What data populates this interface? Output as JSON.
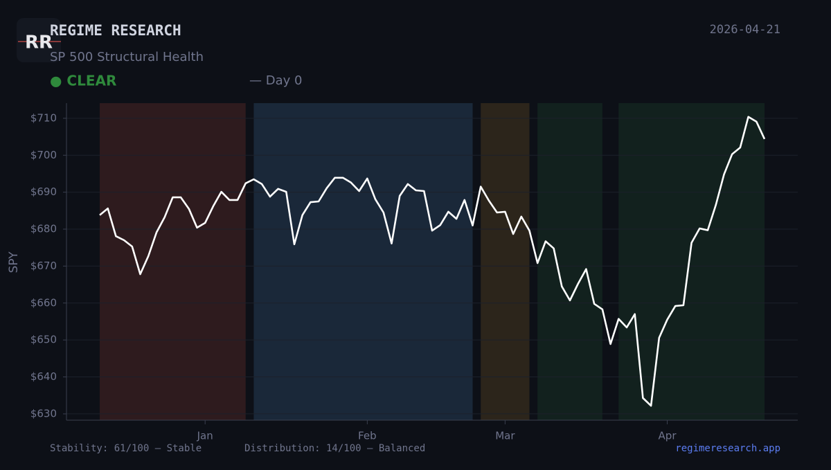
{
  "header": {
    "logo": "RR",
    "title": "REGIME RESEARCH",
    "date": "2026-04-21",
    "subtitle": "SP 500 Structural Health",
    "status": "● CLEAR",
    "day": "— Day 0"
  },
  "chart_data": {
    "type": "line",
    "y_label": "SPY",
    "categories": [
      null,
      null,
      null,
      null,
      null,
      null,
      null,
      null,
      null,
      null,
      null,
      null,
      null,
      "Jan",
      null,
      null,
      null,
      null,
      null,
      null,
      null,
      null,
      null,
      null,
      null,
      null,
      null,
      null,
      null,
      null,
      null,
      null,
      null,
      "Feb",
      null,
      null,
      null,
      null,
      null,
      null,
      null,
      null,
      null,
      null,
      null,
      null,
      null,
      null,
      null,
      null,
      "Mar",
      null,
      null,
      null,
      null,
      null,
      null,
      null,
      null,
      null,
      null,
      null,
      null,
      null,
      null,
      null,
      null,
      null,
      null,
      null,
      "Apr",
      null,
      null,
      null,
      null,
      null,
      null,
      null,
      null,
      null,
      null,
      null,
      null
    ],
    "series": [
      {
        "name": "SPY",
        "color": "#ffffff",
        "values": [
          683.8,
          685.6,
          678.1,
          677.0,
          675.3,
          667.8,
          672.7,
          679.1,
          683.2,
          688.6,
          688.6,
          685.5,
          680.4,
          681.7,
          686.2,
          690.1,
          687.9,
          687.9,
          692.4,
          693.5,
          692.2,
          688.8,
          690.9,
          690.1,
          675.9,
          683.8,
          687.3,
          687.5,
          691.1,
          693.9,
          693.9,
          692.6,
          690.3,
          693.7,
          688.1,
          684.5,
          676.1,
          689.0,
          692.2,
          690.5,
          690.3,
          679.6,
          681.1,
          684.7,
          682.8,
          687.9,
          681.0,
          691.5,
          687.7,
          684.5,
          684.7,
          678.7,
          683.4,
          679.6,
          670.8,
          676.7,
          674.8,
          664.5,
          660.7,
          665.2,
          669.2,
          659.8,
          658.3,
          648.9,
          655.7,
          653.4,
          657.0,
          634.3,
          632.2,
          650.6,
          655.5,
          659.2,
          659.4,
          676.3,
          680.2,
          679.7,
          686.6,
          694.8,
          700.3,
          702.1,
          710.4,
          709.1,
          704.4
        ]
      }
    ],
    "bands": [
      {
        "from": 0,
        "to": 18,
        "color": "#2e1b1e"
      },
      {
        "from": 19,
        "to": 46,
        "color": "#1a2839"
      },
      {
        "from": 47,
        "to": 53,
        "color": "#2c251b"
      },
      {
        "from": 54,
        "to": 62,
        "color": "#12211e"
      },
      {
        "from": 64,
        "to": 82,
        "color": "#12211e"
      }
    ],
    "ylim": [
      628.3,
      714.1
    ],
    "yticks": [
      {
        "value": 630,
        "label": "$630"
      },
      {
        "value": 640,
        "label": "$640"
      },
      {
        "value": 650,
        "label": "$650"
      },
      {
        "value": 660,
        "label": "$660"
      },
      {
        "value": 670,
        "label": "$670"
      },
      {
        "value": 680,
        "label": "$680"
      },
      {
        "value": 690,
        "label": "$690"
      },
      {
        "value": 700,
        "label": "$700"
      },
      {
        "value": 710,
        "label": "$710"
      }
    ],
    "grid": true
  },
  "footer": {
    "stability": "Stability: 61/100 — Stable",
    "distribution": "Distribution: 14/100 — Balanced",
    "link": "regimeresearch.app"
  }
}
